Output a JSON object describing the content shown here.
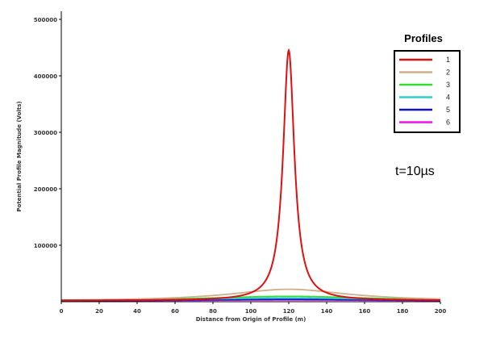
{
  "chart_data": {
    "type": "line",
    "title": "",
    "xlabel": "Distance from Origin of Profile (m)",
    "ylabel": "Potential Profile Magnitude (Volts)",
    "xlim": [
      0,
      200
    ],
    "ylim": [
      0,
      500000
    ],
    "xticks": [
      "0",
      "20",
      "40",
      "60",
      "80",
      "100",
      "120",
      "140",
      "160",
      "180",
      "200"
    ],
    "yticks": [
      "100000",
      "200000",
      "300000",
      "400000",
      "500000"
    ],
    "grid": false,
    "legend": {
      "title": "Profiles",
      "placement": "right"
    },
    "annotation": "t=10µs",
    "series": [
      {
        "name": "1",
        "color": "#dd1111",
        "peak_x": 120,
        "peak": 445000,
        "width": 3.6,
        "floor": 2000
      },
      {
        "name": "2",
        "color": "#cfae8c",
        "peak_x": 120,
        "peak": 22000,
        "width": 38,
        "floor": 1000
      },
      {
        "name": "3",
        "color": "#33dd33",
        "peak_x": 120,
        "peak": 9500,
        "width": 55,
        "floor": 1000
      },
      {
        "name": "4",
        "color": "#33cccc",
        "peak_x": 120,
        "peak": 6500,
        "width": 65,
        "floor": 1000
      },
      {
        "name": "5",
        "color": "#1111cc",
        "peak_x": 120,
        "peak": 4200,
        "width": 75,
        "floor": 800
      },
      {
        "name": "6",
        "color": "#ee11ee",
        "peak_x": 120,
        "peak": 3000,
        "width": 85,
        "floor": 600
      }
    ]
  }
}
